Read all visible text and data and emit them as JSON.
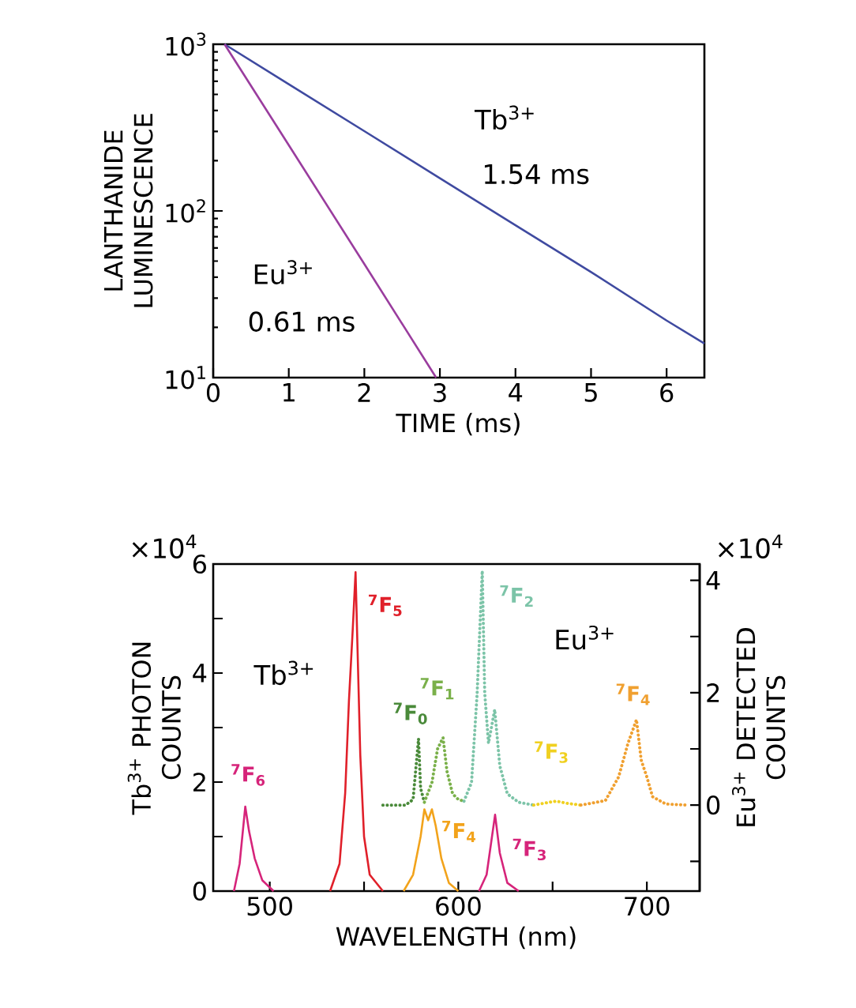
{
  "chart_data": [
    {
      "type": "line",
      "xlabel": "TIME (ms)",
      "ylabel": "LANTHANIDE LUMINESCENCE",
      "log": true,
      "xlim": [
        0,
        6.5
      ],
      "xticks": [
        0,
        1,
        2,
        3,
        4,
        5,
        6
      ],
      "ylim": [
        10,
        1000
      ],
      "yticks": [
        {
          "value": 10,
          "label": "10$^{1}$"
        },
        {
          "value": 100,
          "label": "10$^{2}$"
        },
        {
          "value": 1000,
          "label": "10$^{3}$"
        }
      ],
      "series": [
        {
          "color": "#3f4aa0",
          "x": [
            0.15,
            1,
            2,
            3,
            4,
            5,
            6,
            6.5
          ],
          "values": [
            1000,
            576,
            301,
            157,
            82,
            43,
            22,
            16
          ]
        },
        {
          "color": "#9a3d9e",
          "x": [
            0.15,
            1,
            2,
            2.95
          ],
          "values": [
            1000,
            248,
            48,
            10
          ]
        }
      ],
      "annotations": [
        "Tb$^{3+}$",
        "1.54 ms",
        "Eu$^{3+}$",
        "0.61 ms"
      ]
    },
    {
      "type": "line",
      "xlabel": "WAVELENGTH (nm)",
      "ylabel": "Tb$^{3+}$ PHOTON COUNTS",
      "y2label": "Eu$^{3+}$ DETECTED COUNTS",
      "xlim": [
        470,
        728
      ],
      "xticks": [
        500,
        {
          "value": 550,
          "label": null
        },
        600,
        {
          "value": 650,
          "label": null
        },
        700
      ],
      "ylim": [
        0,
        6
      ],
      "yticks": [
        0,
        {
          "value": 1,
          "label": null
        },
        2,
        {
          "value": 3,
          "label": null
        },
        4,
        {
          "value": 5,
          "label": null
        },
        6
      ],
      "y2lim": [
        -1.53,
        4.29
      ],
      "y2ticks": [
        {
          "value": -1,
          "label": null
        },
        0,
        {
          "value": 1,
          "label": null
        },
        2,
        {
          "value": 3,
          "label": null
        },
        4
      ],
      "series": [
        {
          "name": "$^{7}$F$_{6}$",
          "color": "#d6247a",
          "x": [
            481,
            484,
            487,
            489,
            492,
            496,
            502
          ],
          "values": [
            0,
            0.5,
            1.55,
            1.1,
            0.6,
            0.2,
            0
          ]
        },
        {
          "name": "$^{7}$F$_{5}$",
          "color": "#e0202a",
          "x": [
            532,
            537,
            540,
            542,
            544,
            545.5,
            546.5,
            548,
            550,
            553,
            560
          ],
          "values": [
            0,
            0.5,
            1.8,
            3.5,
            4.8,
            5.85,
            4.5,
            2.5,
            1.0,
            0.3,
            0
          ]
        },
        {
          "name": "$^{7}$F$_{4}$",
          "color": "#f2a31b",
          "x": [
            571,
            576,
            580,
            582,
            584,
            586,
            588,
            591,
            595,
            600
          ],
          "values": [
            0,
            0.3,
            1.0,
            1.5,
            1.3,
            1.5,
            1.2,
            0.6,
            0.15,
            0
          ]
        },
        {
          "name": "$^{7}$F$_{3}$",
          "color": "#d6247a",
          "x": [
            611,
            615,
            619.5,
            622,
            626,
            632
          ],
          "values": [
            0,
            0.3,
            1.4,
            0.7,
            0.15,
            0
          ]
        },
        {
          "name": "$^{7}$F$_{0}$",
          "color": "#4a8a3a",
          "axis": "y2",
          "line_style": "dotted",
          "x": [
            560,
            572,
            576,
            578.9,
            580,
            582
          ],
          "values": [
            0,
            0,
            0.1,
            1.18,
            0.3,
            0.05
          ]
        },
        {
          "name": "$^{7}$F$_{1}$",
          "color": "#7ab04a",
          "axis": "y2",
          "line_style": "dotted",
          "x": [
            582,
            586,
            589,
            591.9,
            594,
            597,
            600,
            603
          ],
          "values": [
            0.05,
            0.4,
            1.0,
            1.2,
            0.6,
            0.2,
            0.1,
            0.07
          ]
        },
        {
          "name": "$^{7}$F$_{2}$",
          "color": "#7cc4a8",
          "axis": "y2",
          "line_style": "dotted",
          "x": [
            603,
            607,
            610,
            612.7,
            614,
            616,
            619.3,
            622,
            626,
            632,
            640
          ],
          "values": [
            0.07,
            0.4,
            2.0,
            4.17,
            2.0,
            1.1,
            1.7,
            0.7,
            0.2,
            0.05,
            0
          ]
        },
        {
          "name": "$^{7}$F$_{3}$",
          "color": "#f0d020",
          "axis": "y2",
          "line_style": "dotted",
          "x": [
            640,
            648,
            652,
            658,
            665
          ],
          "values": [
            0,
            0.05,
            0.07,
            0.03,
            0
          ]
        },
        {
          "name": "$^{7}$F$_{4}$",
          "color": "#f0a030",
          "axis": "y2",
          "line_style": "dotted",
          "x": [
            665,
            678,
            685,
            690,
            694.5,
            697,
            700,
            703,
            710,
            722
          ],
          "values": [
            0,
            0.08,
            0.5,
            1.1,
            1.52,
            0.8,
            0.5,
            0.15,
            0.02,
            0
          ]
        }
      ],
      "annotations": [
        "×10$^{4}$",
        "×10$^{4}$",
        "Tb$^{3+}$",
        "Eu$^{3+}$"
      ]
    }
  ]
}
